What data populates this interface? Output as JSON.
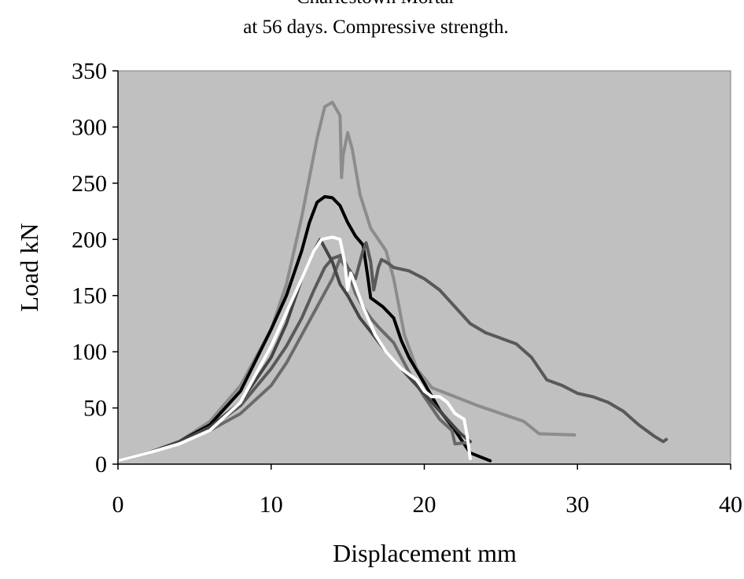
{
  "chart_data": {
    "type": "line",
    "title": "Charlestown Mortar",
    "subtitle": "at 56 days. Compressive strength.",
    "xlabel": "Displacement mm",
    "ylabel": "Load kN",
    "xlim": [
      0,
      40
    ],
    "ylim": [
      0,
      350
    ],
    "x_ticks": [
      0,
      10,
      20,
      30,
      40
    ],
    "y_ticks": [
      0,
      50,
      100,
      150,
      200,
      250,
      300,
      350
    ],
    "grid": false,
    "legend": "none",
    "plot_background": "#c0c0c0",
    "series": [
      {
        "color": "#8c8c8c",
        "points": [
          [
            0,
            3
          ],
          [
            2,
            10
          ],
          [
            4,
            20
          ],
          [
            6,
            38
          ],
          [
            8,
            70
          ],
          [
            10,
            120
          ],
          [
            11,
            160
          ],
          [
            12,
            220
          ],
          [
            12.5,
            255
          ],
          [
            13,
            290
          ],
          [
            13.5,
            318
          ],
          [
            14,
            322
          ],
          [
            14.5,
            310
          ],
          [
            14.6,
            255
          ],
          [
            14.7,
            275
          ],
          [
            15,
            295
          ],
          [
            15.3,
            280
          ],
          [
            15.8,
            240
          ],
          [
            16.5,
            210
          ],
          [
            17.5,
            190
          ],
          [
            18,
            165
          ],
          [
            18.7,
            115
          ],
          [
            19.5,
            85
          ],
          [
            20.5,
            68
          ],
          [
            22,
            60
          ],
          [
            23.5,
            52
          ],
          [
            25,
            45
          ],
          [
            26.5,
            38
          ],
          [
            27.5,
            27
          ],
          [
            29.8,
            26
          ]
        ]
      },
      {
        "color": "#000000",
        "points": [
          [
            0,
            3
          ],
          [
            2,
            10
          ],
          [
            4,
            20
          ],
          [
            6,
            35
          ],
          [
            8,
            65
          ],
          [
            10,
            120
          ],
          [
            11,
            150
          ],
          [
            12,
            190
          ],
          [
            12.5,
            215
          ],
          [
            13,
            233
          ],
          [
            13.5,
            238
          ],
          [
            14,
            237
          ],
          [
            14.5,
            230
          ],
          [
            15,
            215
          ],
          [
            15.5,
            203
          ],
          [
            16,
            195
          ],
          [
            16.3,
            168
          ],
          [
            16.5,
            148
          ],
          [
            17.3,
            140
          ],
          [
            18,
            130
          ],
          [
            18.5,
            110
          ],
          [
            19,
            95
          ],
          [
            20,
            72
          ],
          [
            21,
            48
          ],
          [
            22,
            30
          ],
          [
            22.6,
            18
          ],
          [
            23,
            10
          ],
          [
            24.3,
            3
          ]
        ]
      },
      {
        "color": "#595959",
        "points": [
          [
            0,
            3
          ],
          [
            2,
            10
          ],
          [
            4,
            20
          ],
          [
            6,
            32
          ],
          [
            8,
            52
          ],
          [
            10,
            85
          ],
          [
            11,
            105
          ],
          [
            12,
            130
          ],
          [
            12.8,
            155
          ],
          [
            13.5,
            175
          ],
          [
            14,
            183
          ],
          [
            14.6,
            186
          ],
          [
            15,
            175
          ],
          [
            15.5,
            165
          ],
          [
            16,
            190
          ],
          [
            16.2,
            197
          ],
          [
            16.5,
            180
          ],
          [
            16.7,
            155
          ],
          [
            17,
            175
          ],
          [
            17.2,
            182
          ],
          [
            17.5,
            180
          ],
          [
            18,
            175
          ],
          [
            19,
            172
          ],
          [
            20,
            165
          ],
          [
            21,
            155
          ],
          [
            22,
            140
          ],
          [
            23,
            125
          ],
          [
            24,
            117
          ],
          [
            25,
            112
          ],
          [
            26,
            107
          ],
          [
            27,
            95
          ],
          [
            28,
            75
          ],
          [
            29,
            70
          ],
          [
            30,
            63
          ],
          [
            31,
            60
          ],
          [
            32,
            55
          ],
          [
            33,
            47
          ],
          [
            34,
            35
          ],
          [
            35,
            25
          ],
          [
            35.6,
            20
          ],
          [
            35.8,
            22
          ]
        ]
      },
      {
        "color": "#6a6a6a",
        "points": [
          [
            0,
            3
          ],
          [
            2,
            10
          ],
          [
            4,
            20
          ],
          [
            6,
            30
          ],
          [
            8,
            45
          ],
          [
            10,
            70
          ],
          [
            11,
            90
          ],
          [
            12,
            115
          ],
          [
            13,
            140
          ],
          [
            14,
            165
          ],
          [
            14.5,
            183
          ],
          [
            15,
            172
          ],
          [
            15.5,
            152
          ],
          [
            16,
            140
          ],
          [
            16.5,
            130
          ],
          [
            17,
            122
          ],
          [
            18,
            108
          ],
          [
            19,
            82
          ],
          [
            20,
            60
          ],
          [
            21,
            40
          ],
          [
            21.8,
            30
          ],
          [
            22,
            18
          ],
          [
            22.7,
            19
          ]
        ]
      },
      {
        "color": "#454545",
        "points": [
          [
            0,
            3
          ],
          [
            2,
            10
          ],
          [
            4,
            20
          ],
          [
            6,
            33
          ],
          [
            8,
            55
          ],
          [
            10,
            95
          ],
          [
            11,
            125
          ],
          [
            12,
            165
          ],
          [
            12.8,
            190
          ],
          [
            13.2,
            200
          ],
          [
            13.6,
            190
          ],
          [
            14,
            180
          ],
          [
            14.5,
            160
          ],
          [
            15,
            150
          ],
          [
            15.8,
            130
          ],
          [
            16.5,
            118
          ],
          [
            17.5,
            100
          ],
          [
            18.5,
            85
          ],
          [
            19.5,
            70
          ],
          [
            20.5,
            55
          ],
          [
            21.5,
            40
          ],
          [
            22.3,
            28
          ],
          [
            23,
            20
          ]
        ]
      },
      {
        "color": "#ffffff",
        "points": [
          [
            0,
            3
          ],
          [
            2,
            10
          ],
          [
            4,
            18
          ],
          [
            6,
            30
          ],
          [
            8,
            55
          ],
          [
            10,
            105
          ],
          [
            11,
            135
          ],
          [
            12,
            165
          ],
          [
            12.8,
            190
          ],
          [
            13.3,
            200
          ],
          [
            14,
            202
          ],
          [
            14.5,
            200
          ],
          [
            14.8,
            180
          ],
          [
            15,
            155
          ],
          [
            15.2,
            170
          ],
          [
            16,
            140
          ],
          [
            16.8,
            115
          ],
          [
            17.5,
            100
          ],
          [
            18.5,
            85
          ],
          [
            19.5,
            75
          ],
          [
            20,
            65
          ],
          [
            20.5,
            60
          ],
          [
            21,
            60
          ],
          [
            21.5,
            55
          ],
          [
            22,
            45
          ],
          [
            22.6,
            40
          ],
          [
            22.8,
            25
          ],
          [
            23,
            5
          ]
        ]
      }
    ]
  }
}
